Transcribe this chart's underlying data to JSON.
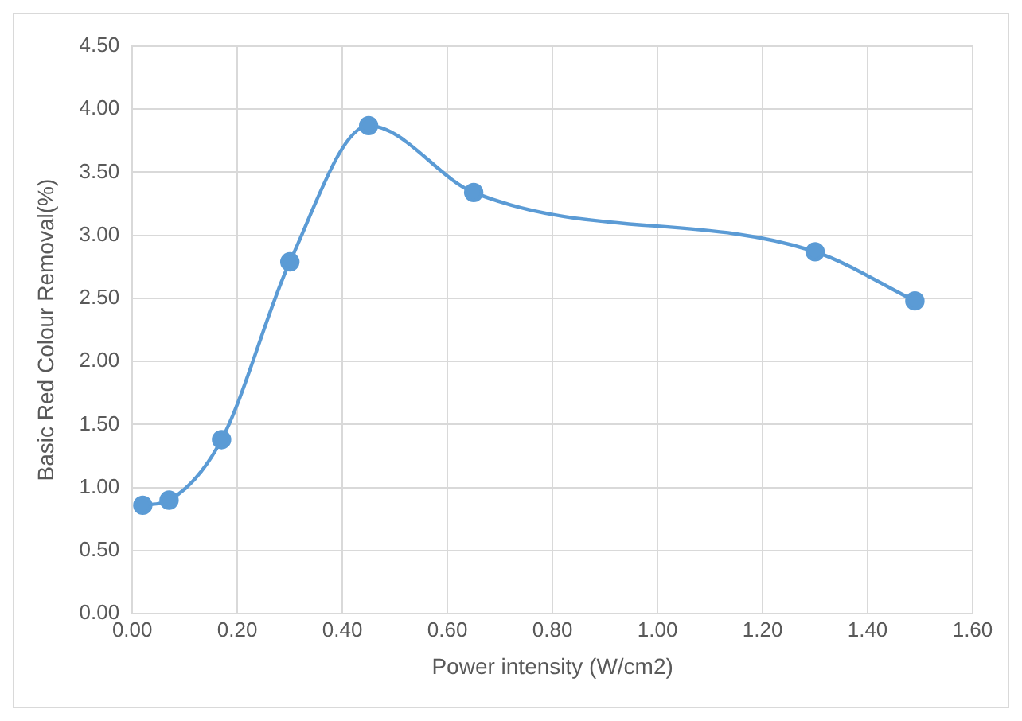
{
  "chart_data": {
    "type": "line",
    "xlabel": "Power intensity (W/cm2)",
    "ylabel": "Basic Red Colour Removal(%)",
    "x": [
      0.02,
      0.07,
      0.17,
      0.3,
      0.45,
      0.65,
      1.3,
      1.49
    ],
    "series": [
      {
        "color": "#5b9bd5",
        "values": [
          0.86,
          0.9,
          1.38,
          2.79,
          3.87,
          3.34,
          2.87,
          2.48
        ]
      }
    ],
    "xlim": [
      0,
      1.6
    ],
    "xticks": [
      {
        "value": 0,
        "label": "0.00"
      },
      {
        "value": 0.2,
        "label": "0.20"
      },
      {
        "value": 0.4,
        "label": "0.40"
      },
      {
        "value": 0.6,
        "label": "0.60"
      },
      {
        "value": 0.8,
        "label": "0.80"
      },
      {
        "value": 1.0,
        "label": "1.00"
      },
      {
        "value": 1.2,
        "label": "1.20"
      },
      {
        "value": 1.4,
        "label": "1.40"
      },
      {
        "value": 1.6,
        "label": "1.60"
      }
    ],
    "ylim": [
      0,
      4.5
    ],
    "yticks": [
      {
        "value": 0,
        "label": "0.00"
      },
      {
        "value": 0.5,
        "label": "0.50"
      },
      {
        "value": 1.0,
        "label": "1.00"
      },
      {
        "value": 1.5,
        "label": "1.50"
      },
      {
        "value": 2.0,
        "label": "2.00"
      },
      {
        "value": 2.5,
        "label": "2.50"
      },
      {
        "value": 3.0,
        "label": "3.00"
      },
      {
        "value": 3.5,
        "label": "3.50"
      },
      {
        "value": 4.0,
        "label": "4.00"
      },
      {
        "value": 4.5,
        "label": "4.50"
      }
    ],
    "grid": true,
    "marker": "circle",
    "line_style": "solid",
    "legend": false
  }
}
